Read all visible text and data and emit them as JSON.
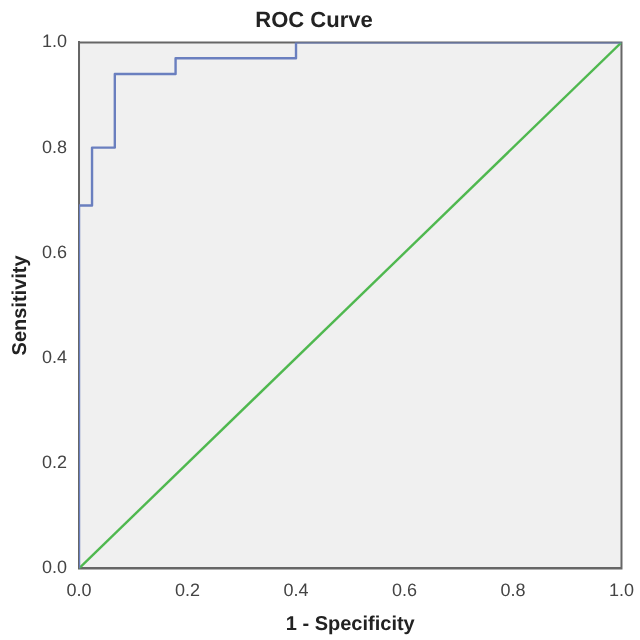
{
  "chart_data": {
    "type": "step",
    "title": "ROC Curve",
    "xlabel": "1 - Specificity",
    "ylabel": "Sensitivity",
    "xlim": [
      0,
      1
    ],
    "ylim": [
      0,
      1
    ],
    "xticks": [
      {
        "value": 0,
        "label": "0.0"
      },
      {
        "value": 0.2,
        "label": "0.2"
      },
      {
        "value": 0.4,
        "label": "0.4"
      },
      {
        "value": 0.6,
        "label": "0.6"
      },
      {
        "value": 0.8,
        "label": "0.8"
      },
      {
        "value": 1,
        "label": "1.0"
      }
    ],
    "yticks": [
      {
        "value": 0,
        "label": "0.0"
      },
      {
        "value": 0.2,
        "label": "0.2"
      },
      {
        "value": 0.4,
        "label": "0.4"
      },
      {
        "value": 0.6,
        "label": "0.6"
      },
      {
        "value": 0.8,
        "label": "0.8"
      },
      {
        "value": 1,
        "label": "1.0"
      }
    ],
    "grid": false,
    "legend": false,
    "series": [
      {
        "color": "#6a7fbf",
        "x": [
          0,
          0,
          0.024,
          0.066,
          0.178,
          0.4,
          1
        ],
        "values": [
          0,
          0.69,
          0.8,
          0.94,
          0.97,
          1,
          1
        ]
      },
      {
        "type": "line",
        "color": "#4fb84f",
        "x": [
          0,
          1
        ],
        "values": [
          0,
          1
        ]
      }
    ]
  }
}
